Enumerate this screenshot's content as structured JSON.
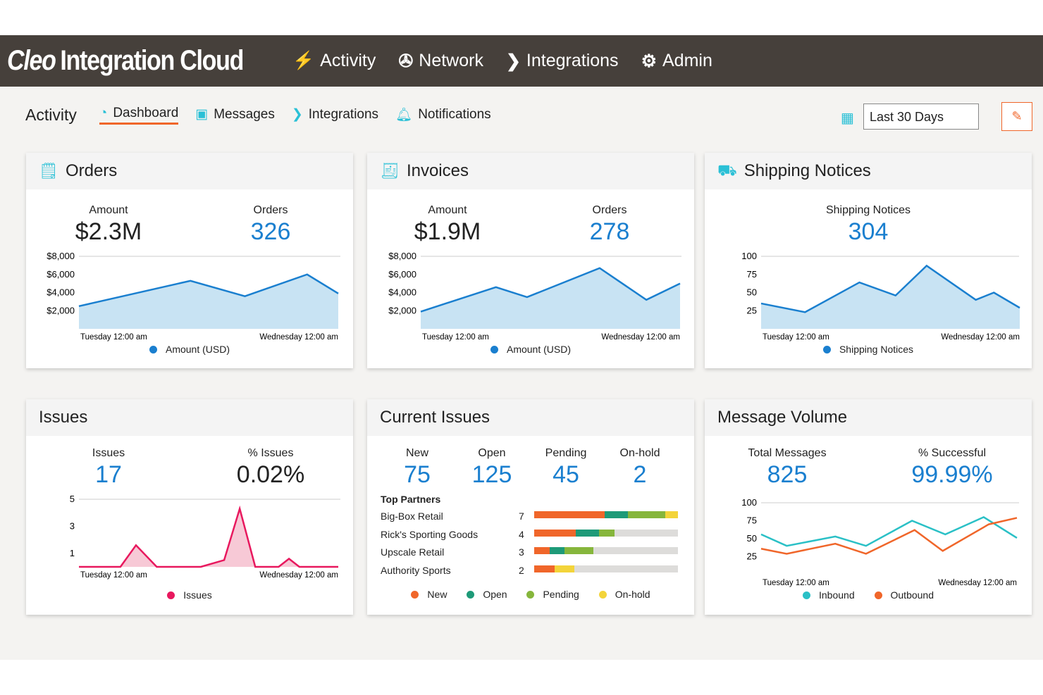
{
  "app": {
    "logo_bold": "Cleo",
    "logo_rest": "Integration Cloud",
    "nav": [
      {
        "label": "Activity",
        "icon": "activity-icon"
      },
      {
        "label": "Network",
        "icon": "network-icon"
      },
      {
        "label": "Integrations",
        "icon": "integrations-icon"
      },
      {
        "label": "Admin",
        "icon": "gear-icon"
      }
    ]
  },
  "subnav": {
    "title": "Activity",
    "tabs": [
      {
        "label": "Dashboard",
        "active": true
      },
      {
        "label": "Messages"
      },
      {
        "label": "Integrations"
      },
      {
        "label": "Notifications"
      }
    ],
    "date_range": "Last 30 Days"
  },
  "colors": {
    "accent": "#2ac0d6",
    "blue": "#1a7fcf",
    "orange": "#f0662a",
    "teal": "#1e9a78",
    "green": "#86b63c",
    "yellow": "#f3d43a",
    "pink": "#e8185e"
  },
  "orders": {
    "title": "Orders",
    "kpis": [
      {
        "label": "Amount",
        "value": "$2.3M"
      },
      {
        "label": "Orders",
        "value": "326"
      }
    ],
    "legend": "Amount (USD)",
    "x_labels": [
      "Tuesday 12:00 am",
      "Wednesday 12:00 am"
    ]
  },
  "invoices": {
    "title": "Invoices",
    "kpis": [
      {
        "label": "Amount",
        "value": "$1.9M"
      },
      {
        "label": "Orders",
        "value": "278"
      }
    ],
    "legend": "Amount (USD)",
    "x_labels": [
      "Tuesday 12:00 am",
      "Wednesday 12:00 am"
    ]
  },
  "shipping": {
    "title": "Shipping Notices",
    "kpis": [
      {
        "label": "Shipping Notices",
        "value": "304"
      }
    ],
    "legend": "Shipping Notices",
    "x_labels": [
      "Tuesday 12:00 am",
      "Wednesday 12:00 am"
    ]
  },
  "issues": {
    "title": "Issues",
    "kpis": [
      {
        "label": "Issues",
        "value": "17"
      },
      {
        "label": "% Issues",
        "value": "0.02%"
      }
    ],
    "legend": "Issues",
    "x_labels": [
      "Tuesday 12:00 am",
      "Wednesday 12:00 am"
    ]
  },
  "current": {
    "title": "Current Issues",
    "kpis": [
      {
        "label": "New",
        "value": "75"
      },
      {
        "label": "Open",
        "value": "125"
      },
      {
        "label": "Pending",
        "value": "45"
      },
      {
        "label": "On-hold",
        "value": "2"
      }
    ],
    "partners_title": "Top Partners",
    "partners": [
      {
        "name": "Big-Box Retail",
        "count": "7",
        "new": 0.49,
        "open": 0.16,
        "pending": 0.26,
        "hold": 0.09
      },
      {
        "name": "Rick's Sporting Goods",
        "count": "4",
        "new": 0.29,
        "open": 0.16,
        "pending": 0.11,
        "hold": 0
      },
      {
        "name": "Upscale Retail",
        "count": "3",
        "new": 0.11,
        "open": 0.1,
        "pending": 0.2,
        "hold": 0
      },
      {
        "name": "Authority Sports",
        "count": "2",
        "new": 0.14,
        "open": 0,
        "pending": 0,
        "hold": 0.14
      }
    ],
    "legend": [
      "New",
      "Open",
      "Pending",
      "On-hold"
    ]
  },
  "volume": {
    "title": "Message Volume",
    "kpis": [
      {
        "label": "Total Messages",
        "value": "825"
      },
      {
        "label": "% Successful",
        "value": "99.99%"
      }
    ],
    "legend": [
      "Inbound",
      "Outbound"
    ],
    "x_labels": [
      "Tuesday 12:00 am",
      "Wednesday 12:00 am"
    ]
  },
  "chart_data": [
    {
      "id": "orders",
      "type": "area",
      "yticks": [
        "$2,000",
        "$4,000",
        "$6,000",
        "$8,000"
      ],
      "ylim": [
        0,
        8000
      ],
      "series": [
        {
          "name": "Amount (USD)",
          "x": [
            0,
            0.43,
            0.64,
            0.88,
            1
          ],
          "y": [
            2500,
            5300,
            3600,
            6000,
            3900
          ]
        }
      ]
    },
    {
      "id": "invoices",
      "type": "area",
      "yticks": [
        "$2,000",
        "$4,000",
        "$6,000",
        "$8,000"
      ],
      "ylim": [
        0,
        8000
      ],
      "series": [
        {
          "name": "Amount (USD)",
          "x": [
            0,
            0.29,
            0.41,
            0.69,
            0.87,
            1
          ],
          "y": [
            1900,
            4600,
            3500,
            6700,
            3200,
            5000
          ]
        }
      ]
    },
    {
      "id": "shipping",
      "type": "area",
      "yticks": [
        "25",
        "50",
        "75",
        "100"
      ],
      "ylim": [
        0,
        100
      ],
      "series": [
        {
          "name": "Shipping Notices",
          "x": [
            0,
            0.17,
            0.38,
            0.52,
            0.64,
            0.83,
            0.9,
            1
          ],
          "y": [
            35,
            23,
            64,
            46,
            87,
            40,
            50,
            29
          ]
        }
      ]
    },
    {
      "id": "issues",
      "type": "area",
      "yticks": [
        "1",
        "3",
        "5"
      ],
      "ylim": [
        0,
        5
      ],
      "series": [
        {
          "name": "Issues",
          "x": [
            0,
            0.16,
            0.22,
            0.3,
            0.47,
            0.56,
            0.62,
            0.68,
            0.77,
            0.81,
            0.85,
            1
          ],
          "y": [
            0,
            0,
            1.6,
            0,
            0,
            0.5,
            4.3,
            0,
            0,
            0.6,
            0,
            0
          ]
        }
      ]
    },
    {
      "id": "volume",
      "type": "line",
      "yticks": [
        "25",
        "50",
        "75",
        "100"
      ],
      "ylim": [
        0,
        100
      ],
      "series": [
        {
          "name": "Inbound",
          "x": [
            0,
            0.1,
            0.29,
            0.41,
            0.59,
            0.72,
            0.87,
            1
          ],
          "y": [
            56,
            40,
            53,
            40,
            75,
            56,
            80,
            51
          ]
        },
        {
          "name": "Outbound",
          "x": [
            0,
            0.1,
            0.29,
            0.41,
            0.6,
            0.71,
            0.89,
            1
          ],
          "y": [
            36,
            29,
            43,
            29,
            62,
            33,
            70,
            79
          ]
        }
      ]
    }
  ]
}
